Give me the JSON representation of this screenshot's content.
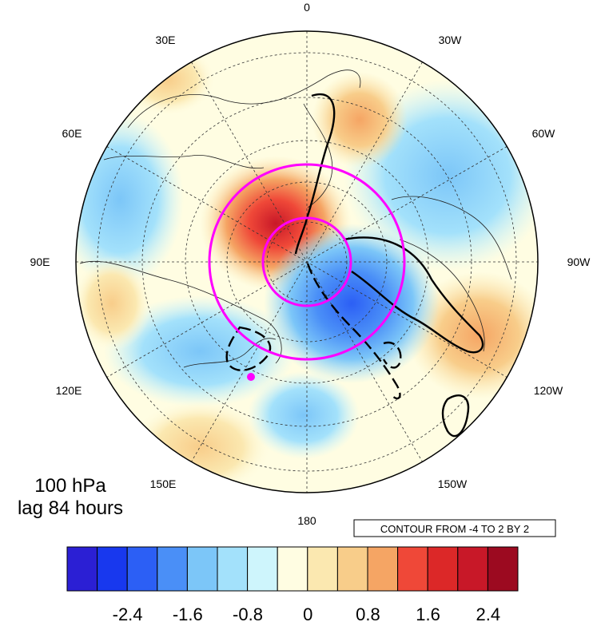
{
  "map": {
    "level_text": "100 hPa",
    "lag_text": "lag 84 hours",
    "contour_info": "CONTOUR FROM -4 TO 2 BY 2",
    "longitude_labels": [
      "0",
      "30W",
      "60W",
      "90W",
      "120W",
      "150W",
      "180",
      "150E",
      "120E",
      "90E",
      "60E",
      "30E"
    ],
    "projection": "north polar stereographic"
  },
  "colorbar": {
    "colors": [
      "#2b1fd4",
      "#1838ee",
      "#2c5ff5",
      "#4a8ff7",
      "#7cc6f8",
      "#a3e1fb",
      "#cef5fc",
      "#fffde2",
      "#fbe8b0",
      "#f8cd8a",
      "#f5a564",
      "#ef4838",
      "#dc2828",
      "#c81828",
      "#9c0a20"
    ],
    "tick_labels": [
      "-2.4",
      "-1.6",
      "-0.8",
      "0",
      "0.8",
      "1.6",
      "2.4"
    ]
  },
  "colors": {
    "ring": "#ff00ff",
    "marker": "#ff00ff",
    "contour": "#000000"
  }
}
